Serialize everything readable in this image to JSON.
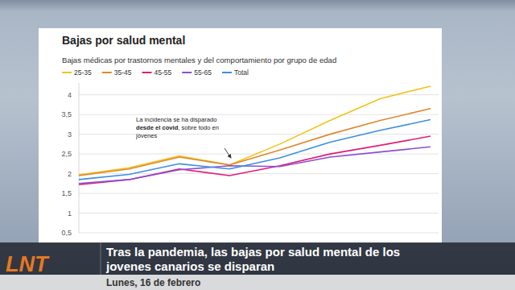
{
  "chart_data": {
    "type": "line",
    "title": "Bajas por salud mental",
    "subtitle": "Bajas médicas por trastornos mentales y del comportamiento por grupo de edad",
    "annotation": [
      "La incidencia se ha disparado ",
      "desde el covid",
      ", sobre todo en jóvenes"
    ],
    "categories": [
      null,
      null,
      null,
      null,
      null,
      null,
      null,
      null
    ],
    "series": [
      {
        "name": "25-35",
        "color": "#f2c318",
        "values": [
          1.97,
          2.15,
          2.45,
          2.22,
          2.75,
          3.35,
          3.9,
          4.22
        ]
      },
      {
        "name": "35-45",
        "color": "#e0882c",
        "values": [
          1.95,
          2.12,
          2.42,
          2.22,
          2.6,
          3.0,
          3.35,
          3.65
        ]
      },
      {
        "name": "45-55",
        "color": "#e01e78",
        "values": [
          1.72,
          1.85,
          2.12,
          1.95,
          2.2,
          2.5,
          2.72,
          2.95
        ]
      },
      {
        "name": "55-65",
        "color": "#8a4fd2",
        "values": [
          1.75,
          1.85,
          2.1,
          2.2,
          2.18,
          2.42,
          2.55,
          2.68
        ]
      },
      {
        "name": "Total",
        "color": "#3b8fe0",
        "values": [
          1.85,
          1.98,
          2.25,
          2.12,
          2.4,
          2.8,
          3.1,
          3.37
        ]
      }
    ],
    "ylim": [
      0.5,
      4.3
    ],
    "yticks": [
      {
        "value": 0.5,
        "label": "0,5"
      },
      1,
      {
        "value": 1.5,
        "label": "1,5"
      },
      2,
      {
        "value": 2.5,
        "label": "2,5"
      },
      3,
      {
        "value": 3.5,
        "label": "3,5"
      },
      4
    ],
    "grid": true,
    "legend": "top-left"
  },
  "caption": {
    "headline": [
      "Tras la pandemia, las bajas por salud mental de los",
      "jovenes canarios se disparan"
    ],
    "date": "Lunes, 16 de febrero"
  },
  "logo": "LNT"
}
